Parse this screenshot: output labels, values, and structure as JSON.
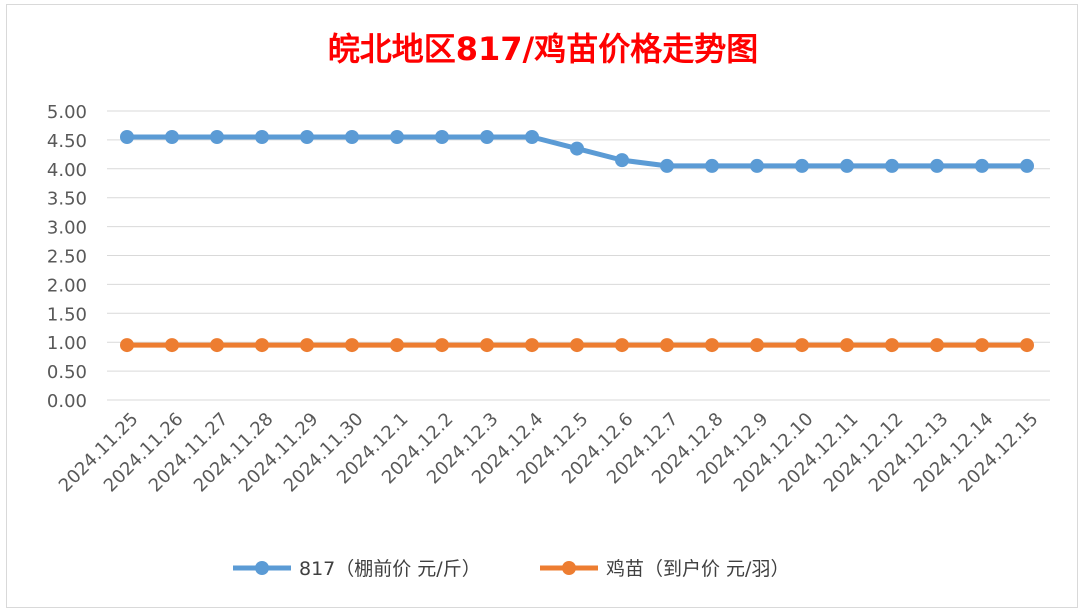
{
  "chart_data": {
    "type": "line",
    "title": "皖北地区817/鸡苗价格走势图",
    "categories": [
      "2024.11.25",
      "2024.11.26",
      "2024.11.27",
      "2024.11.28",
      "2024.11.29",
      "2024.11.30",
      "2024.12.1",
      "2024.12.2",
      "2024.12.3",
      "2024.12.4",
      "2024.12.5",
      "2024.12.6",
      "2024.12.7",
      "2024.12.8",
      "2024.12.9",
      "2024.12.10",
      "2024.12.11",
      "2024.12.12",
      "2024.12.13",
      "2024.12.14",
      "2024.12.15"
    ],
    "series": [
      {
        "name": "817（棚前价 元/斤）",
        "color": "#5b9bd5",
        "values": [
          4.55,
          4.55,
          4.55,
          4.55,
          4.55,
          4.55,
          4.55,
          4.55,
          4.55,
          4.55,
          4.35,
          4.15,
          4.05,
          4.05,
          4.05,
          4.05,
          4.05,
          4.05,
          4.05,
          4.05,
          4.05
        ]
      },
      {
        "name": "鸡苗（到户价 元/羽）",
        "color": "#ed7d31",
        "values": [
          0.95,
          0.95,
          0.95,
          0.95,
          0.95,
          0.95,
          0.95,
          0.95,
          0.95,
          0.95,
          0.95,
          0.95,
          0.95,
          0.95,
          0.95,
          0.95,
          0.95,
          0.95,
          0.95,
          0.95,
          0.95
        ]
      }
    ],
    "ylim": [
      0,
      5
    ],
    "yticks": [
      "0.00",
      "0.50",
      "1.00",
      "1.50",
      "2.00",
      "2.50",
      "3.00",
      "3.50",
      "4.00",
      "4.50",
      "5.00"
    ],
    "xlabel": "",
    "ylabel": "",
    "grid": true,
    "legend": "bottom"
  }
}
